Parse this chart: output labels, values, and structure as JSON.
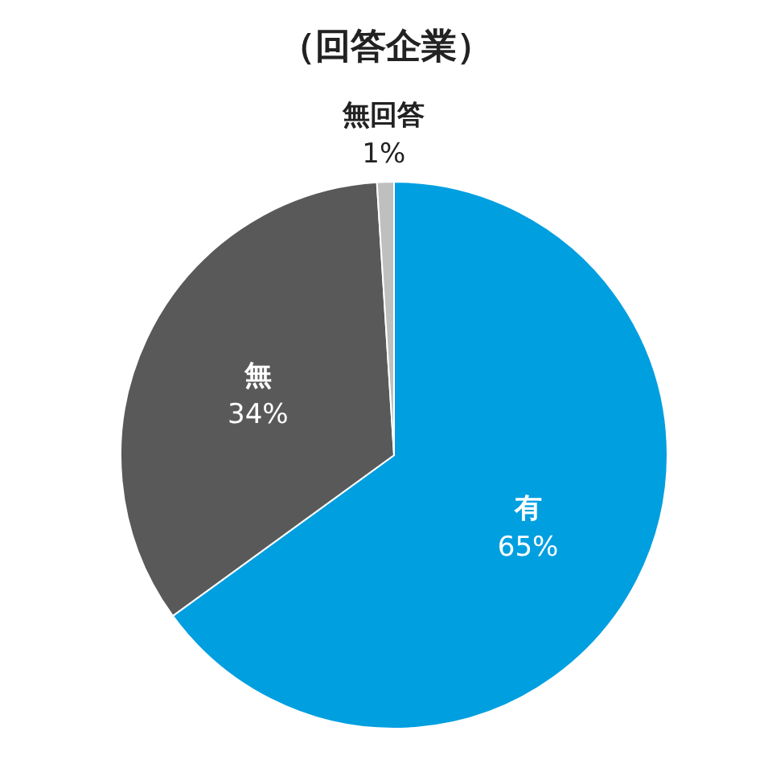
{
  "chart_data": {
    "type": "pie",
    "title": "（回答企業）",
    "categories": [
      "有",
      "無",
      "無回答"
    ],
    "values": [
      65,
      34,
      1
    ],
    "colors": [
      "#009fe0",
      "#595959",
      "#bfbfbf"
    ],
    "value_labels": [
      "65%",
      "34%",
      "1%"
    ]
  }
}
